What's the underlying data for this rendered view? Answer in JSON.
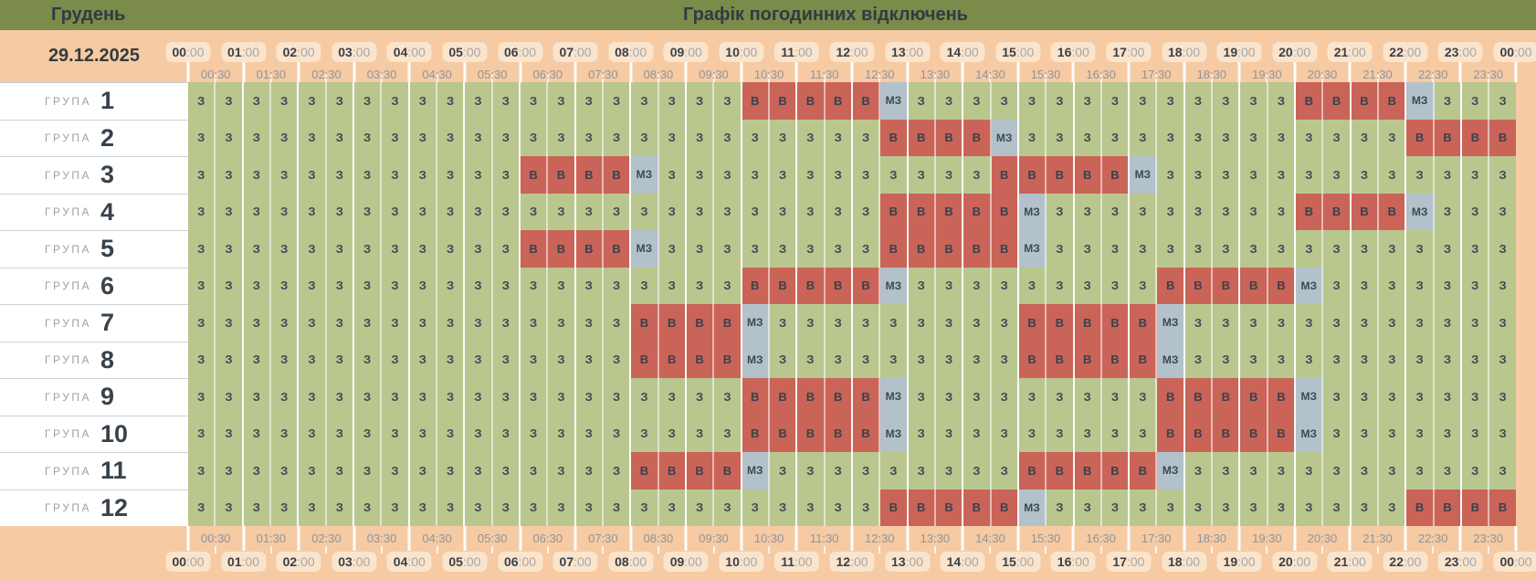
{
  "header": {
    "month": "Грудень",
    "title": "Графік погодинних відключень",
    "date": "29.12.2025"
  },
  "axis": {
    "hours": [
      "00",
      "01",
      "02",
      "03",
      "04",
      "05",
      "06",
      "07",
      "08",
      "09",
      "10",
      "11",
      "12",
      "13",
      "14",
      "15",
      "16",
      "17",
      "18",
      "19",
      "20",
      "21",
      "22",
      "23",
      "00"
    ],
    "minutes_suffix": ":00",
    "half_hours": [
      "00:30",
      "01:30",
      "02:30",
      "03:30",
      "04:30",
      "05:30",
      "06:30",
      "07:30",
      "08:30",
      "09:30",
      "10:30",
      "11:30",
      "12:30",
      "13:30",
      "14:30",
      "15:30",
      "16:30",
      "17:30",
      "18:30",
      "19:30",
      "20:30",
      "21:30",
      "22:30",
      "23:30"
    ]
  },
  "cell_labels": {
    "g": "З",
    "r": "В",
    "m": "МЗ"
  },
  "colors": {
    "header_bar": "#7a8b4a",
    "band": "#f6caa3",
    "pill": "#fbe4cc",
    "powered_green": "#b9c78f",
    "outage_red": "#ca6458",
    "possible_gray": "#b3c1cb"
  },
  "groups": {
    "label_prefix": "ГРУПА",
    "rows": [
      {
        "number": "1",
        "cells": "ggggggggggggggggggggrrrrrmggggggggggggggrrrrmggg"
      },
      {
        "number": "2",
        "cells": "gggggggggggggggggggggggggrrrrmggggggggggggggrrrr"
      },
      {
        "number": "3",
        "cells": "ggggggggggggrrrrmggggggggggggrrrrrmggggggggggggg"
      },
      {
        "number": "4",
        "cells": "gggggggggggggggggggggggggrrrrrmgggggggggrrrrmggg"
      },
      {
        "number": "5",
        "cells": "ggggggggggggrrrrmggggggggrrrrrmggggggggggggggggg"
      },
      {
        "number": "6",
        "cells": "ggggggggggggggggggggrrrrrmgggggggggrrrrrmggggggg"
      },
      {
        "number": "7",
        "cells": "ggggggggggggggggrrrrmgggggggggrrrrrmgggggggggggg"
      },
      {
        "number": "8",
        "cells": "ggggggggggggggggrrrrmgggggggggrrrrrmgggggggggggg"
      },
      {
        "number": "9",
        "cells": "ggggggggggggggggggggrrrrrmgggggggggrrrrrmggggggg"
      },
      {
        "number": "10",
        "cells": "ggggggggggggggggggggrrrrrmgggggggggrrrrrmggggggg"
      },
      {
        "number": "11",
        "cells": "ggggggggggggggggrrrrmgggggggggrrrrrmgggggggggggg"
      },
      {
        "number": "12",
        "cells": "gggggggggggggggggggggggggrrrrrmgggggggggggggrrrr"
      }
    ]
  }
}
